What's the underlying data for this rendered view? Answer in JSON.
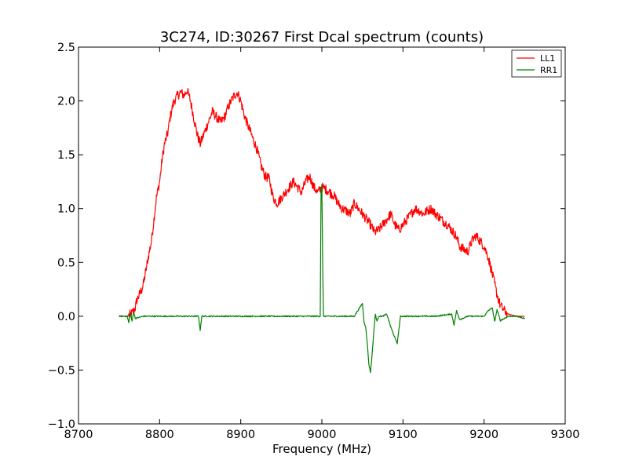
{
  "chart_data": {
    "type": "line",
    "title": "3C274, ID:30267 First Dcal spectrum (counts)",
    "xlabel": "Frequency (MHz)",
    "ylabel": "",
    "xlim": [
      8700,
      9300
    ],
    "ylim": [
      -1.0,
      2.5
    ],
    "xticks": [
      8700,
      8800,
      8900,
      9000,
      9100,
      9200,
      9300
    ],
    "xtick_labels": [
      "8700",
      "8800",
      "8900",
      "9000",
      "9100",
      "9200",
      "9300"
    ],
    "yticks": [
      -1.0,
      -0.5,
      0.0,
      0.5,
      1.0,
      1.5,
      2.0,
      2.5
    ],
    "ytick_labels": [
      "−1.0",
      "−0.5",
      "0.0",
      "0.5",
      "1.0",
      "1.5",
      "2.0",
      "2.5"
    ],
    "grid": false,
    "legend_position": "top-right",
    "series": [
      {
        "name": "LL1",
        "color": "#ff0000",
        "x": [
          8750,
          8760,
          8765,
          8768,
          8770,
          8772,
          8775,
          8778,
          8780,
          8783,
          8786,
          8790,
          8793,
          8796,
          8800,
          8803,
          8806,
          8810,
          8813,
          8816,
          8818,
          8822,
          8826,
          8830,
          8834,
          8838,
          8842,
          8846,
          8850,
          8855,
          8860,
          8865,
          8870,
          8875,
          8880,
          8885,
          8888,
          8892,
          8896,
          8900,
          8905,
          8910,
          8915,
          8920,
          8925,
          8930,
          8935,
          8940,
          8945,
          8950,
          8955,
          8960,
          8965,
          8970,
          8975,
          8980,
          8985,
          8990,
          8995,
          9000,
          9005,
          9010,
          9015,
          9020,
          9025,
          9030,
          9035,
          9040,
          9045,
          9050,
          9055,
          9060,
          9065,
          9070,
          9075,
          9080,
          9085,
          9090,
          9095,
          9100,
          9105,
          9110,
          9115,
          9120,
          9125,
          9130,
          9135,
          9140,
          9145,
          9150,
          9155,
          9160,
          9165,
          9170,
          9175,
          9180,
          9185,
          9190,
          9195,
          9200,
          9205,
          9210,
          9213,
          9216,
          9220,
          9225,
          9230,
          9240,
          9250
        ],
        "values": [
          0.0,
          0.0,
          0.02,
          0.05,
          0.08,
          0.15,
          0.2,
          0.25,
          0.3,
          0.42,
          0.55,
          0.7,
          0.9,
          1.1,
          1.25,
          1.45,
          1.6,
          1.7,
          1.85,
          1.95,
          2.0,
          2.05,
          2.08,
          2.05,
          2.1,
          2.0,
          1.85,
          1.7,
          1.6,
          1.7,
          1.8,
          1.9,
          1.85,
          1.8,
          1.85,
          1.95,
          2.0,
          2.05,
          2.08,
          2.0,
          1.85,
          1.75,
          1.65,
          1.55,
          1.4,
          1.3,
          1.28,
          1.1,
          1.05,
          1.1,
          1.15,
          1.2,
          1.25,
          1.2,
          1.15,
          1.25,
          1.3,
          1.2,
          1.15,
          1.2,
          1.18,
          1.15,
          1.12,
          1.05,
          1.0,
          0.98,
          0.95,
          1.05,
          1.0,
          0.95,
          0.9,
          0.85,
          0.78,
          0.8,
          0.85,
          0.9,
          0.95,
          0.85,
          0.8,
          0.85,
          0.9,
          0.95,
          1.0,
          0.98,
          0.95,
          0.98,
          1.0,
          0.95,
          0.92,
          0.88,
          0.85,
          0.8,
          0.75,
          0.65,
          0.62,
          0.6,
          0.7,
          0.75,
          0.7,
          0.65,
          0.55,
          0.4,
          0.3,
          0.2,
          0.1,
          0.05,
          0.02,
          0.0,
          0.0
        ]
      },
      {
        "name": "RR1",
        "color": "#008000",
        "x": [
          8750,
          8760,
          8762,
          8764,
          8766,
          8768,
          8770,
          8780,
          8800,
          8820,
          8840,
          8848,
          8850,
          8852,
          8860,
          8900,
          8950,
          8998,
          8999,
          9000,
          9001,
          9002,
          9010,
          9040,
          9050,
          9052,
          9054,
          9056,
          9058,
          9060,
          9062,
          9064,
          9066,
          9068,
          9070,
          9075,
          9080,
          9085,
          9090,
          9093,
          9095,
          9097,
          9100,
          9105,
          9120,
          9140,
          9160,
          9163,
          9166,
          9170,
          9180,
          9200,
          9205,
          9210,
          9213,
          9216,
          9220,
          9230,
          9240,
          9250
        ],
        "values": [
          0.0,
          0.0,
          -0.06,
          0.03,
          -0.05,
          0.04,
          -0.02,
          0.0,
          0.0,
          0.0,
          0.0,
          0.0,
          -0.13,
          0.0,
          0.0,
          0.0,
          0.0,
          0.0,
          1.15,
          1.22,
          0.5,
          0.0,
          0.0,
          0.0,
          0.12,
          -0.05,
          -0.1,
          -0.25,
          -0.45,
          -0.52,
          -0.35,
          -0.15,
          0.02,
          -0.05,
          0.0,
          0.0,
          0.02,
          -0.1,
          -0.2,
          -0.25,
          -0.12,
          0.0,
          0.0,
          0.0,
          0.0,
          0.0,
          0.02,
          -0.08,
          0.05,
          -0.03,
          0.0,
          0.0,
          0.05,
          0.08,
          -0.05,
          0.06,
          -0.04,
          0.0,
          0.0,
          -0.02
        ]
      }
    ]
  }
}
